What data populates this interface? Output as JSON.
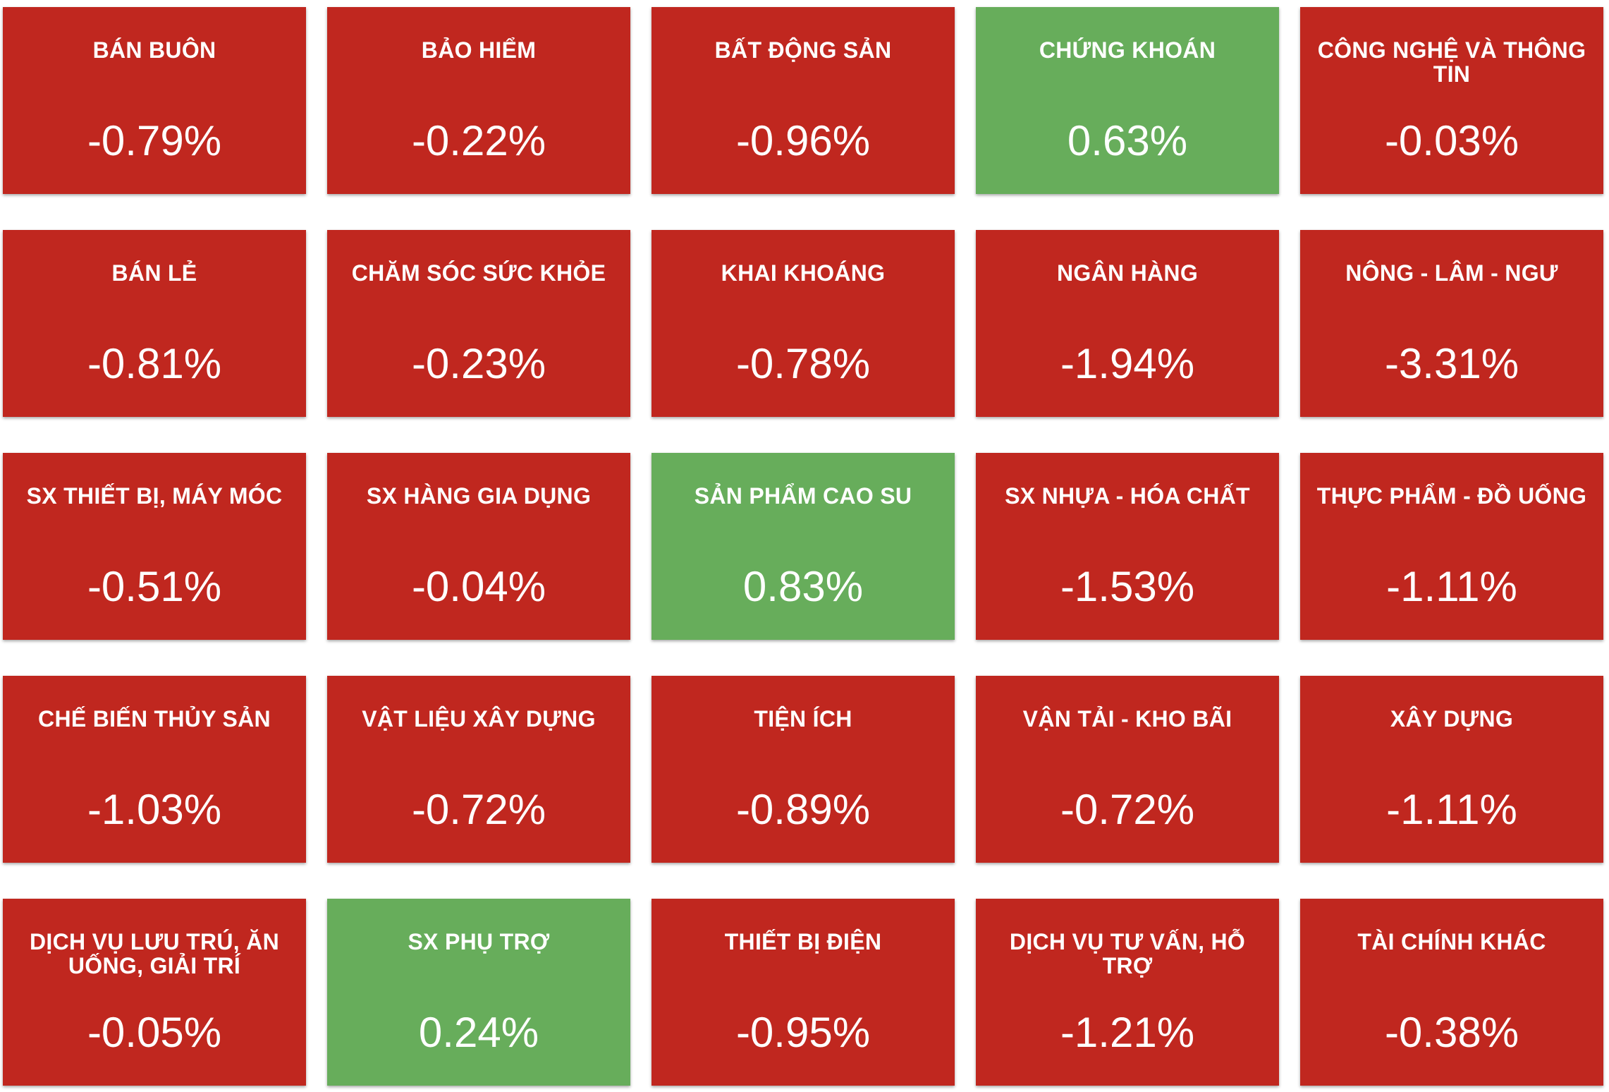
{
  "colors": {
    "negative": "#c0271f",
    "positive": "#67ad5b"
  },
  "sectors": [
    {
      "name": "BÁN BUÔN",
      "change": "-0.79%",
      "trend": "negative"
    },
    {
      "name": "BẢO HIỂM",
      "change": "-0.22%",
      "trend": "negative"
    },
    {
      "name": "BẤT ĐỘNG SẢN",
      "change": "-0.96%",
      "trend": "negative"
    },
    {
      "name": "CHỨNG KHOÁN",
      "change": "0.63%",
      "trend": "positive"
    },
    {
      "name": "CÔNG NGHỆ VÀ THÔNG TIN",
      "change": "-0.03%",
      "trend": "negative"
    },
    {
      "name": "BÁN LẺ",
      "change": "-0.81%",
      "trend": "negative"
    },
    {
      "name": "CHĂM SÓC SỨC KHỎE",
      "change": "-0.23%",
      "trend": "negative"
    },
    {
      "name": "KHAI KHOÁNG",
      "change": "-0.78%",
      "trend": "negative"
    },
    {
      "name": "NGÂN HÀNG",
      "change": "-1.94%",
      "trend": "negative"
    },
    {
      "name": "NÔNG - LÂM - NGƯ",
      "change": "-3.31%",
      "trend": "negative"
    },
    {
      "name": "SX THIẾT BỊ, MÁY MÓC",
      "change": "-0.51%",
      "trend": "negative"
    },
    {
      "name": "SX HÀNG GIA DỤNG",
      "change": "-0.04%",
      "trend": "negative"
    },
    {
      "name": "SẢN PHẨM CAO SU",
      "change": "0.83%",
      "trend": "positive"
    },
    {
      "name": "SX NHỰA - HÓA CHẤT",
      "change": "-1.53%",
      "trend": "negative"
    },
    {
      "name": "THỰC PHẨM - ĐỒ UỐNG",
      "change": "-1.11%",
      "trend": "negative"
    },
    {
      "name": "CHẾ BIẾN THỦY SẢN",
      "change": "-1.03%",
      "trend": "negative"
    },
    {
      "name": "VẬT LIỆU XÂY DỰNG",
      "change": "-0.72%",
      "trend": "negative"
    },
    {
      "name": "TIỆN ÍCH",
      "change": "-0.89%",
      "trend": "negative"
    },
    {
      "name": "VẬN TẢI - KHO BÃI",
      "change": "-0.72%",
      "trend": "negative"
    },
    {
      "name": "XÂY DỰNG",
      "change": "-1.11%",
      "trend": "negative"
    },
    {
      "name": "DỊCH VỤ LƯU TRÚ, ĂN UỐNG, GIẢI TRÍ",
      "change": "-0.05%",
      "trend": "negative"
    },
    {
      "name": "SX PHỤ TRỢ",
      "change": "0.24%",
      "trend": "positive"
    },
    {
      "name": "THIẾT BỊ ĐIỆN",
      "change": "-0.95%",
      "trend": "negative"
    },
    {
      "name": "DỊCH VỤ TƯ VẤN, HỖ TRỢ",
      "change": "-1.21%",
      "trend": "negative"
    },
    {
      "name": "TÀI CHÍNH KHÁC",
      "change": "-0.38%",
      "trend": "negative"
    }
  ]
}
